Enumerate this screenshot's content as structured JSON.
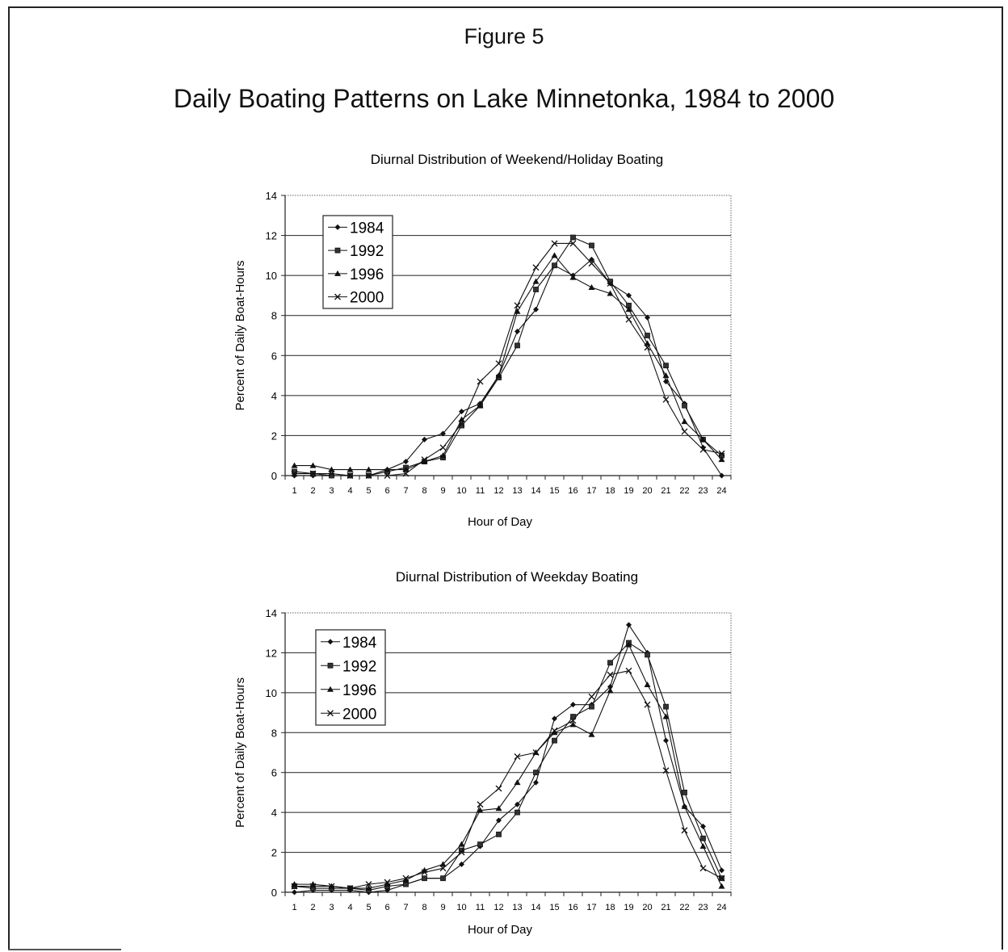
{
  "figure": {
    "label": "Figure 5",
    "heading": "Daily Boating Patterns on Lake Minnetonka, 1984 to 2000"
  },
  "chart_data": [
    {
      "type": "line",
      "title": "Diurnal Distribution of Weekend/Holiday Boating",
      "xlabel": "Hour of Day",
      "ylabel": "Percent of Daily Boat-Hours",
      "x": [
        1,
        2,
        3,
        4,
        5,
        6,
        7,
        8,
        9,
        10,
        11,
        12,
        13,
        14,
        15,
        16,
        17,
        18,
        19,
        20,
        21,
        22,
        23,
        24
      ],
      "ylim": [
        0,
        14
      ],
      "yticks": [
        0,
        2,
        4,
        6,
        8,
        10,
        12,
        14
      ],
      "grid": true,
      "legend_position": "top-left",
      "series": [
        {
          "name": "1984",
          "marker": "diamond",
          "values": [
            0.0,
            0.0,
            0.0,
            0.0,
            0.0,
            0.3,
            0.7,
            1.8,
            2.1,
            3.2,
            3.6,
            5.0,
            7.2,
            8.3,
            10.5,
            10.0,
            10.8,
            9.6,
            9.0,
            7.9,
            4.7,
            3.6,
            1.4,
            0.0
          ]
        },
        {
          "name": "1992",
          "marker": "square",
          "values": [
            0.2,
            0.1,
            0.0,
            0.0,
            0.0,
            0.2,
            0.4,
            0.7,
            0.9,
            2.5,
            3.5,
            4.9,
            6.5,
            9.3,
            10.5,
            11.9,
            11.5,
            9.7,
            8.5,
            7.0,
            5.5,
            3.5,
            1.8,
            1.0
          ]
        },
        {
          "name": "1996",
          "marker": "triangle",
          "values": [
            0.5,
            0.5,
            0.3,
            0.3,
            0.3,
            0.3,
            0.3,
            0.7,
            1.0,
            2.8,
            3.5,
            5.0,
            8.2,
            9.7,
            11.0,
            9.9,
            9.4,
            9.1,
            8.3,
            6.6,
            5.0,
            2.7,
            1.8,
            0.8
          ]
        },
        {
          "name": "2000",
          "marker": "x",
          "values": [
            0.1,
            0.1,
            0.1,
            0.0,
            0.0,
            0.0,
            0.1,
            0.8,
            1.4,
            2.6,
            4.7,
            5.6,
            8.5,
            10.4,
            11.6,
            11.6,
            10.6,
            9.6,
            7.8,
            6.4,
            3.8,
            2.2,
            1.3,
            1.1
          ]
        }
      ]
    },
    {
      "type": "line",
      "title": "Diurnal Distribution of Weekday Boating",
      "xlabel": "Hour of Day",
      "ylabel": "Percent of Daily Boat-Hours",
      "x": [
        1,
        2,
        3,
        4,
        5,
        6,
        7,
        8,
        9,
        10,
        11,
        12,
        13,
        14,
        15,
        16,
        17,
        18,
        19,
        20,
        21,
        22,
        23,
        24
      ],
      "ylim": [
        0,
        14
      ],
      "yticks": [
        0,
        2,
        4,
        6,
        8,
        10,
        12,
        14
      ],
      "grid": true,
      "legend_position": "top-left",
      "series": [
        {
          "name": "1984",
          "marker": "diamond",
          "values": [
            0.0,
            0.1,
            0.1,
            0.1,
            0.0,
            0.1,
            0.4,
            0.7,
            0.7,
            1.4,
            2.3,
            3.6,
            4.4,
            5.5,
            8.7,
            9.4,
            9.4,
            10.3,
            13.4,
            12.0,
            7.6,
            4.3,
            3.3,
            1.1
          ]
        },
        {
          "name": "1992",
          "marker": "square",
          "values": [
            0.3,
            0.2,
            0.2,
            0.2,
            0.1,
            0.3,
            0.4,
            0.7,
            0.7,
            2.1,
            2.4,
            2.9,
            4.0,
            6.0,
            7.6,
            8.8,
            9.3,
            11.5,
            12.5,
            11.9,
            9.3,
            5.0,
            2.7,
            0.7
          ]
        },
        {
          "name": "1996",
          "marker": "triangle",
          "values": [
            0.4,
            0.4,
            0.3,
            0.2,
            0.2,
            0.4,
            0.6,
            1.1,
            1.4,
            2.4,
            4.1,
            4.2,
            5.5,
            7.0,
            8.0,
            8.4,
            7.9,
            10.1,
            12.4,
            10.4,
            8.8,
            4.3,
            2.3,
            0.3
          ]
        },
        {
          "name": "2000",
          "marker": "x",
          "values": [
            0.3,
            0.3,
            0.3,
            0.2,
            0.4,
            0.5,
            0.7,
            1.0,
            1.2,
            2.0,
            4.4,
            5.2,
            6.8,
            7.0,
            8.1,
            8.6,
            9.8,
            10.9,
            11.1,
            9.4,
            6.1,
            3.1,
            1.2,
            0.7
          ]
        }
      ]
    }
  ]
}
